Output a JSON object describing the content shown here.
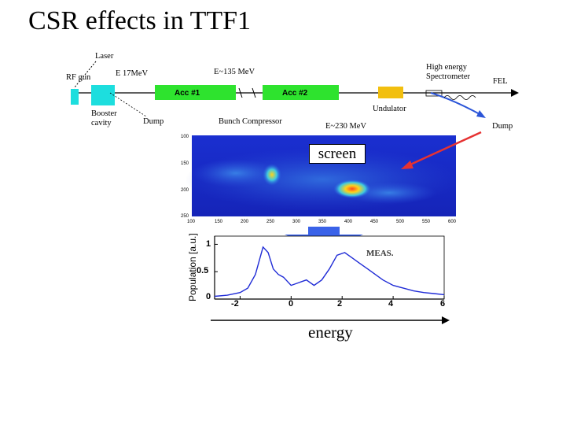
{
  "slide": {
    "title": "CSR effects in TTF1"
  },
  "beamline": {
    "labels": {
      "laser": "Laser",
      "rf_gun": "RF gun",
      "e1": "E 17MeV",
      "e2": "E~135 MeV",
      "high_energy": "High energy",
      "spectrometer": "Spectrometer",
      "fel": "FEL",
      "booster": "Booster",
      "cavity": "cavity",
      "dump1": "Dump",
      "bunch_compressor": "Bunch Compressor",
      "e3": "E~230 MeV",
      "undulator": "Undulator",
      "dump2": "Dump",
      "acc1": "Acc #1",
      "acc2": "Acc #2"
    },
    "colors": {
      "cavity": "#1ddede",
      "acc": "#2ee32e",
      "undulator": "#f2bf0e",
      "arrow": "#e63232",
      "beam_bend": "#2b55d8"
    }
  },
  "screen_image": {
    "label": "screen",
    "x_ticks": [
      "100",
      "150",
      "200",
      "250",
      "300",
      "350",
      "400",
      "450",
      "500",
      "550",
      "600"
    ],
    "y_ticks": [
      "100",
      "150",
      "200",
      "250"
    ]
  },
  "chart_data": {
    "type": "line",
    "title": "",
    "xlabel": "energy",
    "ylabel": "Population [a.u.]",
    "annotation": "MEAS.",
    "xlim": [
      -3,
      6
    ],
    "ylim": [
      0,
      1.15
    ],
    "x_ticks": [
      "-2",
      "0",
      "2",
      "4",
      "6"
    ],
    "y_ticks": [
      "0",
      "0.5",
      "1"
    ],
    "series": [
      {
        "name": "MEAS.",
        "color": "#1f2bd6",
        "x": [
          -3,
          -2.5,
          -2,
          -1.7,
          -1.4,
          -1.1,
          -0.9,
          -0.7,
          -0.5,
          -0.3,
          0,
          0.3,
          0.6,
          0.9,
          1.2,
          1.5,
          1.8,
          2.1,
          2.4,
          2.7,
          3,
          3.3,
          3.6,
          4,
          4.4,
          4.8,
          5.2,
          5.6,
          6
        ],
        "values": [
          0.05,
          0.07,
          0.12,
          0.2,
          0.45,
          0.95,
          0.85,
          0.55,
          0.45,
          0.4,
          0.25,
          0.3,
          0.35,
          0.25,
          0.35,
          0.55,
          0.8,
          0.85,
          0.75,
          0.65,
          0.55,
          0.45,
          0.35,
          0.25,
          0.2,
          0.15,
          0.12,
          0.1,
          0.08
        ]
      }
    ]
  }
}
